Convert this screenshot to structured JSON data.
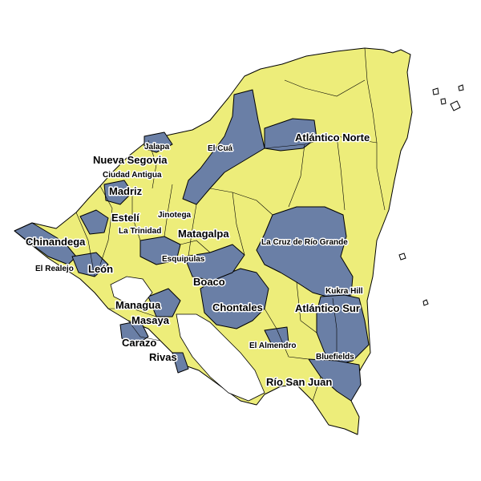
{
  "map": {
    "colors": {
      "yellow": "#eded7a",
      "blue": "#6a7fa6",
      "water": "#ffffff",
      "border": "#000000"
    },
    "department_labels": [
      "Nueva Segovia",
      "Madriz",
      "Estelí",
      "Chinandega",
      "León",
      "Matagalpa",
      "Atlántico Norte",
      "Boaco",
      "Managua",
      "Masaya",
      "Carazo",
      "Rivas",
      "Chontales",
      "Atlántico Sur",
      "Río San Juan"
    ],
    "municipality_labels": [
      "Jalapa",
      "Ciudad Antigua",
      "El Cuá",
      "Jinotega",
      "La Trinidad",
      "El Realejo",
      "Esquipulas",
      "La Cruz de Río Grande",
      "Kukra Hill",
      "El Almendro",
      "Bluefields"
    ]
  }
}
